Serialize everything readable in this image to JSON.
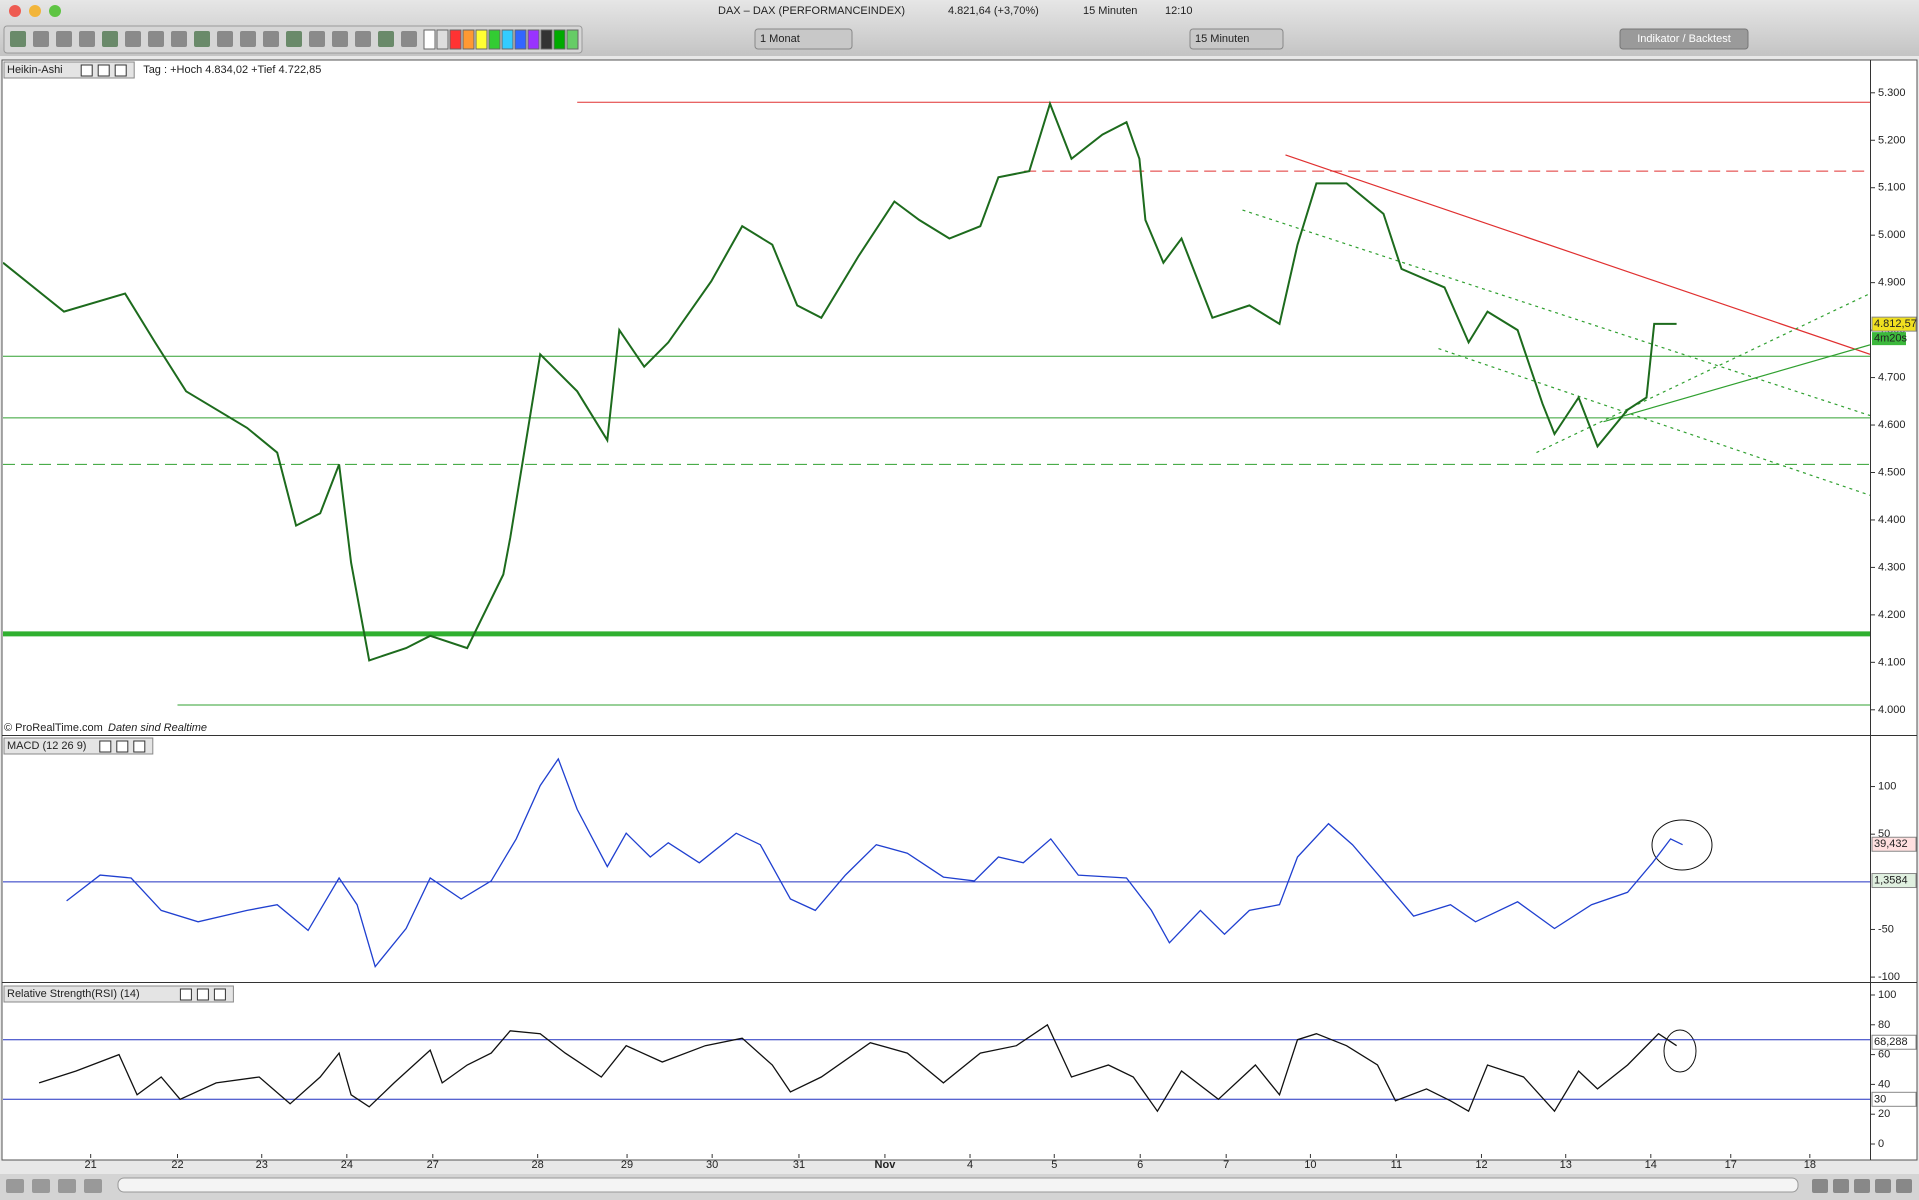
{
  "window": {
    "title": "DAX – DAX (PERFORMANCEINDEX)",
    "quote": "4.821,64 (+3,70%)",
    "interval": "15 Minuten",
    "time": "12:10"
  },
  "toolbar": {
    "period": "1 Monat",
    "interval": "15 Minuten",
    "button": "Indikator / Backtest"
  },
  "chart_data": [
    {
      "type": "line",
      "title": "Heikin-Ashi",
      "subtitle": "Tag : +Hoch 4.834,02 +Tief 4.722,85",
      "source": "© ProRealTime.com",
      "note": "Daten sind Realtime",
      "color": "#1d6b1d",
      "xlim": [
        -1.02,
        20.7
      ],
      "ylim": [
        3949,
        5367
      ],
      "yticks": [
        {
          "value": 4000,
          "label": "4.000"
        },
        {
          "value": 4100,
          "label": "4.100"
        },
        {
          "value": 4200,
          "label": "4.200"
        },
        {
          "value": 4300,
          "label": "4.300"
        },
        {
          "value": 4400,
          "label": "4.400"
        },
        {
          "value": 4500,
          "label": "4.500"
        },
        {
          "value": 4600,
          "label": "4.600"
        },
        {
          "value": 4700,
          "label": "4.700"
        },
        {
          "value": 4800,
          "label": "4.800"
        },
        {
          "value": 4900,
          "label": "4.900"
        },
        {
          "value": 5000,
          "label": "5.000"
        },
        {
          "value": 5100,
          "label": "5.100"
        },
        {
          "value": 5200,
          "label": "5.200"
        },
        {
          "value": 5300,
          "label": "5.300"
        }
      ],
      "x": [
        -1.02,
        -0.31,
        0.4,
        0.75,
        1.11,
        1.82,
        2.17,
        2.39,
        2.67,
        2.89,
        3.03,
        3.24,
        3.67,
        3.95,
        4.38,
        4.8,
        4.88,
        5.23,
        5.66,
        6.01,
        6.15,
        6.44,
        6.72,
        7.22,
        7.58,
        7.93,
        8.22,
        8.5,
        8.93,
        9.35,
        9.64,
        9.99,
        10.35,
        10.56,
        10.92,
        11.16,
        11.41,
        11.77,
        12.05,
        12.2,
        12.27,
        12.48,
        12.69,
        13.05,
        13.48,
        13.83,
        14.04,
        14.26,
        14.61,
        15.04,
        15.25,
        15.75,
        16.03,
        16.25,
        16.6,
        16.89,
        17.03,
        17.31,
        17.53,
        17.88,
        18.1,
        18.19,
        18.45
      ],
      "values": [
        4942,
        4839,
        4877,
        4774,
        4671,
        4594,
        4542,
        4388,
        4414,
        4517,
        4310,
        4104,
        4130,
        4156,
        4130,
        4285,
        4362,
        4749,
        4671,
        4568,
        4800,
        4723,
        4774,
        4903,
        5019,
        4980,
        4852,
        4826,
        4955,
        5071,
        5032,
        4993,
        5019,
        5122,
        5135,
        5277,
        5161,
        5212,
        5238,
        5161,
        5032,
        4942,
        4993,
        4826,
        4852,
        4813,
        4980,
        5109,
        5109,
        5045,
        4929,
        4890,
        4774,
        4839,
        4800,
        4645,
        4581,
        4658,
        4555,
        4632,
        4658,
        4813,
        4813
      ],
      "hlines": [
        {
          "value": 5280,
          "from": 5.66,
          "color": "#e03030",
          "style": "solid"
        },
        {
          "value": 5135,
          "from": 10.86,
          "color": "#e03030",
          "style": "dashed"
        },
        {
          "value": 4745,
          "from": -1.02,
          "color": "#30a030",
          "style": "solid"
        },
        {
          "value": 4615,
          "from": -1.02,
          "color": "#30a030",
          "style": "solid"
        },
        {
          "value": 4517,
          "from": -1.02,
          "color": "#30a030",
          "style": "dashed"
        },
        {
          "value": 4160,
          "from": -1.02,
          "color": "#30b030",
          "style": "thick"
        },
        {
          "value": 4010,
          "from": 1.01,
          "color": "#30a030",
          "style": "solid"
        }
      ],
      "trendlines": [
        {
          "x": [
            13.9,
            20.7
          ],
          "values": [
            5169,
            4749
          ],
          "color": "#e03030",
          "style": "solid"
        },
        {
          "x": [
            17.6,
            20.7
          ],
          "values": [
            4607,
            4769
          ],
          "color": "#30a030",
          "style": "solid"
        },
        {
          "x": [
            13.4,
            20.7
          ],
          "values": [
            5053,
            4620
          ],
          "color": "#30a030",
          "style": "dotted"
        },
        {
          "x": [
            15.68,
            20.7
          ],
          "values": [
            4761,
            4452
          ],
          "color": "#30a030",
          "style": "dotted"
        },
        {
          "x": [
            16.82,
            20.7
          ],
          "values": [
            4542,
            4877
          ],
          "color": "#30a030",
          "style": "dotted"
        }
      ],
      "axis_labels": [
        {
          "value": 4812.57,
          "label": "4.812,57",
          "color": "#f0e020"
        }
      ],
      "timer": "4m20s"
    },
    {
      "type": "line",
      "title": "MACD (12 26 9)",
      "color": "#2040d0",
      "xlim": [
        -1.02,
        20.7
      ],
      "ylim": [
        -102,
        152
      ],
      "yticks": [
        -100,
        -50,
        50,
        100
      ],
      "x": [
        -0.28,
        0.11,
        0.47,
        0.82,
        1.25,
        1.82,
        2.17,
        2.53,
        2.89,
        3.1,
        3.31,
        3.67,
        3.95,
        4.31,
        4.66,
        4.95,
        5.23,
        5.44,
        5.66,
        6.01,
        6.23,
        6.51,
        6.72,
        7.08,
        7.51,
        7.79,
        8.14,
        8.43,
        8.78,
        9.14,
        9.5,
        9.92,
        10.28,
        10.56,
        10.85,
        11.17,
        11.49,
        12.05,
        12.34,
        12.55,
        12.91,
        13.19,
        13.48,
        13.83,
        14.04,
        14.4,
        14.68,
        15.04,
        15.39,
        15.82,
        16.11,
        16.6,
        17.03,
        17.46,
        17.88,
        18.17,
        18.38,
        18.52
      ],
      "values": [
        -20,
        7,
        4,
        -30,
        -42,
        -30,
        -24,
        -51,
        4,
        -24,
        -89,
        -49,
        4,
        -18,
        1,
        45,
        101,
        129,
        76,
        16,
        51,
        26,
        41,
        20,
        51,
        39,
        -18,
        -30,
        7,
        39,
        30,
        5,
        1,
        26,
        20,
        45,
        7,
        4,
        -30,
        -64,
        -30,
        -55,
        -30,
        -24,
        26,
        61,
        39,
        1,
        -36,
        -24,
        -42,
        -21,
        -49,
        -24,
        -11,
        20,
        45,
        39
      ],
      "hlines": [
        {
          "value": 0,
          "from": -1.02,
          "color": "#2030c0",
          "style": "solid"
        }
      ],
      "axis_labels": [
        {
          "value": 39.432,
          "label": "39,432",
          "color": "#ffe0e0"
        },
        {
          "value": 1.3584,
          "label": "1,3584",
          "color": "#e0f0e0"
        }
      ]
    },
    {
      "type": "line",
      "title": "Relative Strength(RSI) (14)",
      "color": "#111111",
      "xlim": [
        -1.02,
        20.7
      ],
      "ylim": [
        -6.7,
        106.7
      ],
      "yticks": [
        0,
        20,
        40,
        60,
        80,
        100
      ],
      "x": [
        -0.6,
        -0.17,
        0.33,
        0.54,
        0.82,
        1.04,
        1.46,
        1.96,
        2.32,
        2.67,
        2.89,
        3.03,
        3.24,
        3.53,
        3.95,
        4.09,
        4.38,
        4.66,
        4.88,
        5.23,
        5.52,
        5.94,
        6.23,
        6.65,
        7.15,
        7.58,
        7.93,
        8.14,
        8.5,
        9.07,
        9.5,
        9.92,
        10.35,
        10.77,
        11.13,
        11.41,
        11.84,
        12.13,
        12.41,
        12.69,
        13.12,
        13.55,
        13.83,
        14.04,
        14.26,
        14.61,
        14.97,
        15.18,
        15.54,
        15.82,
        16.03,
        16.25,
        16.67,
        17.03,
        17.31,
        17.53,
        17.88,
        18.24,
        18.45
      ],
      "values": [
        41,
        49,
        60,
        33,
        45,
        30,
        41,
        45,
        27,
        45,
        61,
        33,
        25,
        41,
        63,
        41,
        53,
        61,
        76,
        74,
        61,
        45,
        66,
        55,
        66,
        71,
        53,
        35,
        45,
        68,
        61,
        41,
        61,
        66,
        80,
        45,
        53,
        45,
        22,
        49,
        30,
        53,
        33,
        70,
        74,
        66,
        53,
        29,
        37,
        29,
        22,
        53,
        45,
        22,
        49,
        37,
        53,
        74,
        66
      ],
      "hlines": [
        {
          "value": 70,
          "from": -1.02,
          "color": "#2030c0",
          "style": "solid"
        },
        {
          "value": 30,
          "from": -1.02,
          "color": "#2030c0",
          "style": "solid"
        }
      ],
      "axis_labels": [
        {
          "value": 68.288,
          "label": "68,288",
          "color": "#ffffff"
        },
        {
          "value": 30,
          "label": "30",
          "color": "#ffffff"
        }
      ],
      "xticks": [
        {
          "value": 0,
          "label": "21"
        },
        {
          "value": 1.01,
          "label": "22"
        },
        {
          "value": 1.99,
          "label": "23"
        },
        {
          "value": 2.98,
          "label": "24"
        },
        {
          "value": 3.98,
          "label": "27"
        },
        {
          "value": 5.2,
          "label": "28"
        },
        {
          "value": 6.24,
          "label": "29"
        },
        {
          "value": 7.23,
          "label": "30"
        },
        {
          "value": 8.24,
          "label": "31"
        },
        {
          "value": 9.24,
          "label": "Nov"
        },
        {
          "value": 10.23,
          "label": "4"
        },
        {
          "value": 11.21,
          "label": "5"
        },
        {
          "value": 12.21,
          "label": "6"
        },
        {
          "value": 13.21,
          "label": "7"
        },
        {
          "value": 14.19,
          "label": "10"
        },
        {
          "value": 15.19,
          "label": "11"
        },
        {
          "value": 16.18,
          "label": "12"
        },
        {
          "value": 17.16,
          "label": "13"
        },
        {
          "value": 18.15,
          "label": "14"
        },
        {
          "value": 19.08,
          "label": "17"
        },
        {
          "value": 20.0,
          "label": "18"
        }
      ]
    }
  ]
}
